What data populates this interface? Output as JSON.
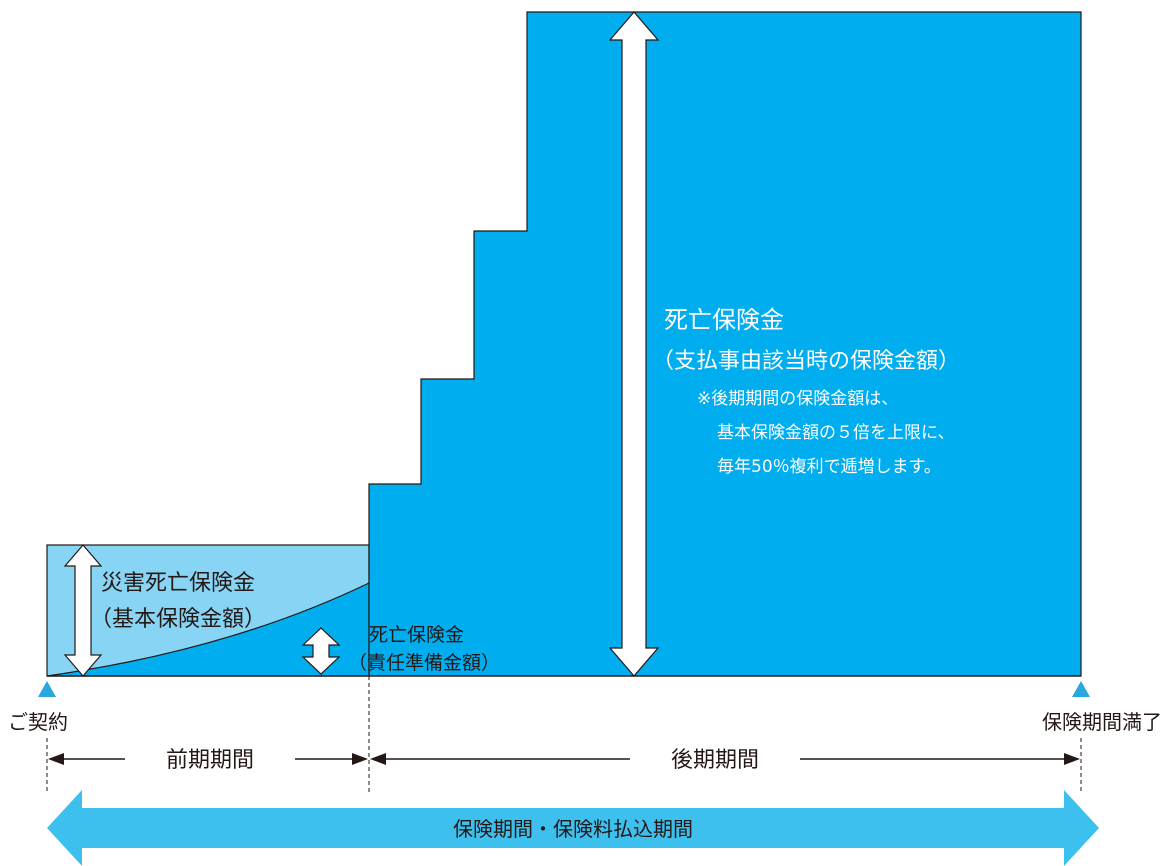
{
  "colors": {
    "main_fill": "#00adef",
    "light_fill": "#88d4f4",
    "band_fill": "#3dc0ee",
    "outline": "#231815",
    "contract_marker": "#29a8df"
  },
  "death_benefit": {
    "title": "死亡保険金",
    "subtitle": "（支払事由該当時の保険金額）",
    "note_line1": "※後期期間の保険金額は、",
    "note_line2": "基本保険金額の５倍を上限に、",
    "note_line3": "毎年50％複利で逓増します。"
  },
  "accident_benefit": {
    "title": "災害死亡保険金",
    "subtitle": "（基本保険金額）"
  },
  "reserve_benefit": {
    "title": "死亡保険金",
    "subtitle": "（責任準備金額）"
  },
  "timeline": {
    "start_label": "ご契約",
    "end_label": "保険期間満了",
    "early_period": "前期期間",
    "late_period": "後期期間",
    "total_period": "保険期間・保険料払込期間"
  },
  "icons": {
    "vertical_double_arrow": "double-arrow-vertical-icon",
    "horizontal_double_arrow": "double-arrow-horizontal-icon",
    "contract_marker": "triangle-up-icon"
  }
}
